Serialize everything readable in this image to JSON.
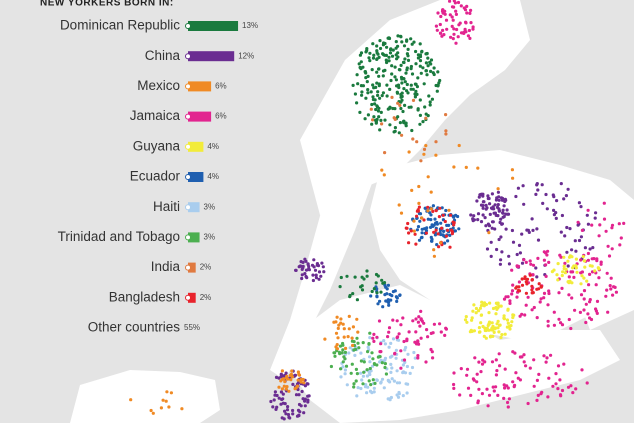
{
  "legend": {
    "title": "NEW YORKERS BORN IN:",
    "items": [
      {
        "name": "Dominican Republic",
        "value": 13,
        "value_label": "13%",
        "color": "#1a7a3e"
      },
      {
        "name": "China",
        "value": 12,
        "value_label": "12%",
        "color": "#6a2d91"
      },
      {
        "name": "Mexico",
        "value": 6,
        "value_label": "6%",
        "color": "#f08a24"
      },
      {
        "name": "Jamaica",
        "value": 6,
        "value_label": "6%",
        "color": "#e2248f"
      },
      {
        "name": "Guyana",
        "value": 4,
        "value_label": "4%",
        "color": "#f2ec3a"
      },
      {
        "name": "Ecuador",
        "value": 4,
        "value_label": "4%",
        "color": "#1f5fb0"
      },
      {
        "name": "Haiti",
        "value": 3,
        "value_label": "3%",
        "color": "#a9cdee"
      },
      {
        "name": "Trinidad and Tobago",
        "value": 3,
        "value_label": "3%",
        "color": "#4caf50"
      },
      {
        "name": "India",
        "value": 2,
        "value_label": "2%",
        "color": "#e07a40"
      },
      {
        "name": "Bangladesh",
        "value": 2,
        "value_label": "2%",
        "color": "#e8232c"
      },
      {
        "name": "Other countries",
        "value": 55,
        "value_label": "55%"
      }
    ]
  }
}
